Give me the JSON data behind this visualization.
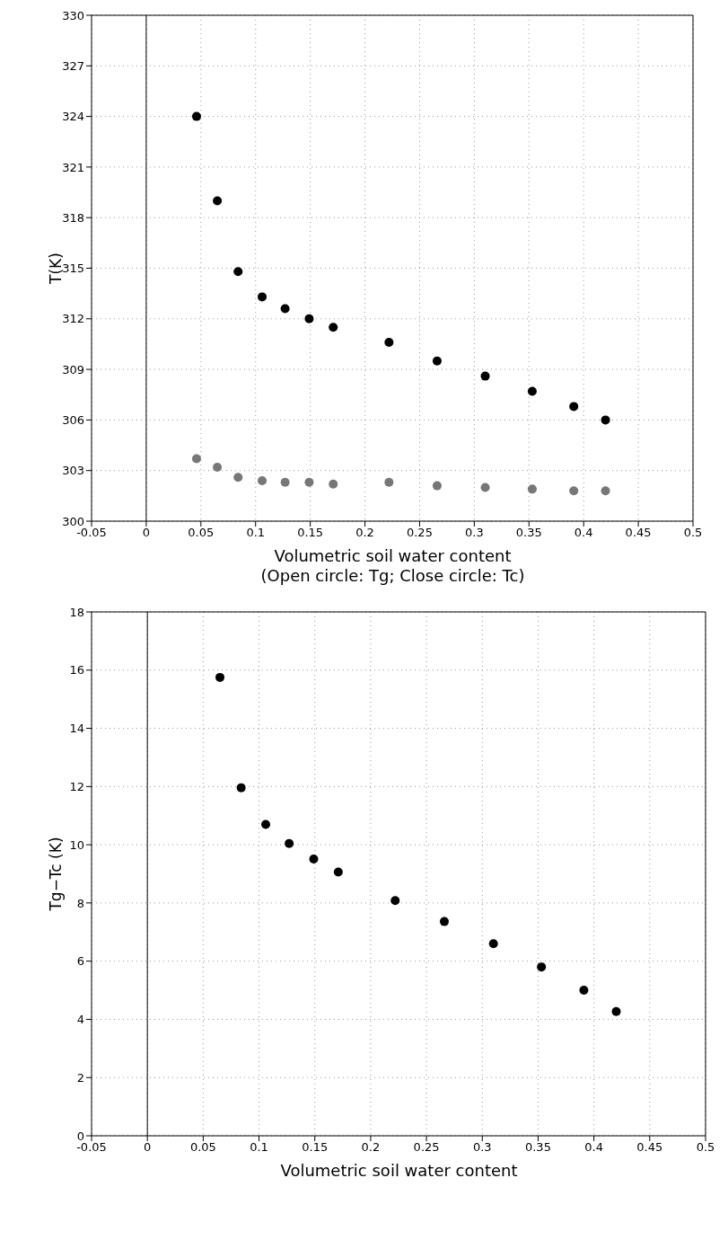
{
  "chart_data": [
    {
      "type": "scatter",
      "xlabel": "Volumetric soil water content\n(Open circle: Tg; Close circle: Tc)",
      "ylabel": "T(K)",
      "x": [
        0.046,
        0.065,
        0.084,
        0.106,
        0.127,
        0.149,
        0.171,
        0.222,
        0.266,
        0.31,
        0.353,
        0.391,
        0.42
      ],
      "series": [
        {
          "color": "#000000",
          "values": [
            324.0,
            319.0,
            314.8,
            313.3,
            312.6,
            312.0,
            311.5,
            310.6,
            309.5,
            308.6,
            307.7,
            306.8,
            306.0
          ]
        },
        {
          "color": "#777777",
          "values": [
            303.7,
            303.2,
            302.6,
            302.4,
            302.3,
            302.3,
            302.2,
            302.3,
            302.1,
            302.0,
            301.9,
            301.8,
            301.8
          ]
        }
      ],
      "xlim": [
        -0.05,
        0.5
      ],
      "xticks": [
        -0.05,
        0,
        0.05,
        0.1,
        0.15,
        0.2,
        0.25,
        0.3,
        0.35,
        0.4,
        0.45,
        0.5
      ],
      "ylim": [
        300,
        330
      ],
      "yticks": [
        300,
        303,
        306,
        309,
        312,
        315,
        318,
        321,
        324,
        327,
        330
      ],
      "ref_lines": [
        {
          "axis": "x",
          "value": 0,
          "color": "#000000",
          "line_style": "solid"
        }
      ],
      "grid": true,
      "marker": "circle"
    },
    {
      "type": "scatter",
      "xlabel": "Volumetric soil water content",
      "ylabel": "Tg−Tc (K)",
      "series": [
        {
          "color": "#000000",
          "x": [
            0.065,
            0.084,
            0.106,
            0.127,
            0.149,
            0.171,
            0.222,
            0.266,
            0.31,
            0.353,
            0.391,
            0.42
          ],
          "values": [
            15.75,
            11.96,
            10.7,
            10.04,
            9.51,
            9.06,
            8.08,
            7.36,
            6.6,
            5.8,
            5.0,
            4.27
          ]
        }
      ],
      "xlim": [
        -0.05,
        0.5
      ],
      "xticks": [
        -0.05,
        0,
        0.05,
        0.1,
        0.15,
        0.2,
        0.25,
        0.3,
        0.35,
        0.4,
        0.45,
        0.5
      ],
      "ylim": [
        0,
        18
      ],
      "yticks": [
        0,
        2,
        4,
        6,
        8,
        10,
        12,
        14,
        16,
        18
      ],
      "ref_lines": [
        {
          "axis": "x",
          "value": 0,
          "color": "#000000",
          "line_style": "solid"
        }
      ],
      "grid": true,
      "marker": "circle"
    }
  ]
}
